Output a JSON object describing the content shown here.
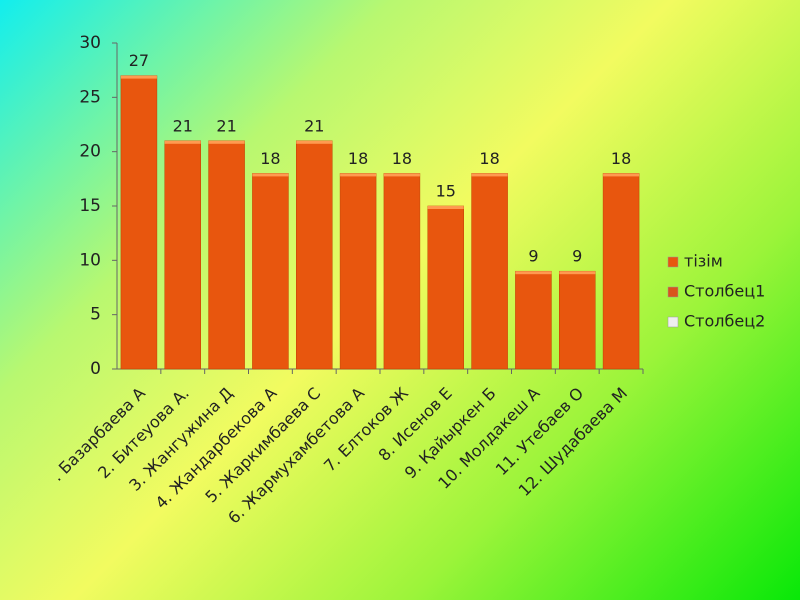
{
  "chart_data": {
    "type": "bar",
    "categories": [
      ". Базарбаева А",
      "2. Битеуова А.",
      "3. Жангужина Д",
      "4. Жандарбекова А",
      "5. Жаркимбаева С",
      "6. Жармухамбетова А",
      "7. Елтоков Ж",
      "8. Исенов Е",
      "9. Қайыркен Б",
      "10. Молдакеш А",
      "11. Утебаев О",
      "12. Шудабаева М"
    ],
    "series": [
      {
        "name": "тізім",
        "color": "#e8560e",
        "values": [
          27,
          21,
          21,
          18,
          21,
          18,
          18,
          15,
          18,
          9,
          9,
          18
        ]
      },
      {
        "name": "Столбец1",
        "color": "#d9541c",
        "values": [
          null,
          null,
          null,
          null,
          null,
          null,
          null,
          null,
          null,
          null,
          null,
          null
        ]
      },
      {
        "name": "Столбец2",
        "color": "#eeeeee",
        "values": [
          null,
          null,
          null,
          null,
          null,
          null,
          null,
          null,
          null,
          null,
          null,
          null
        ]
      }
    ],
    "ylim": [
      0,
      30
    ],
    "yticks": [
      0,
      5,
      10,
      15,
      20,
      25,
      30
    ],
    "grid": false,
    "legend": "right"
  }
}
